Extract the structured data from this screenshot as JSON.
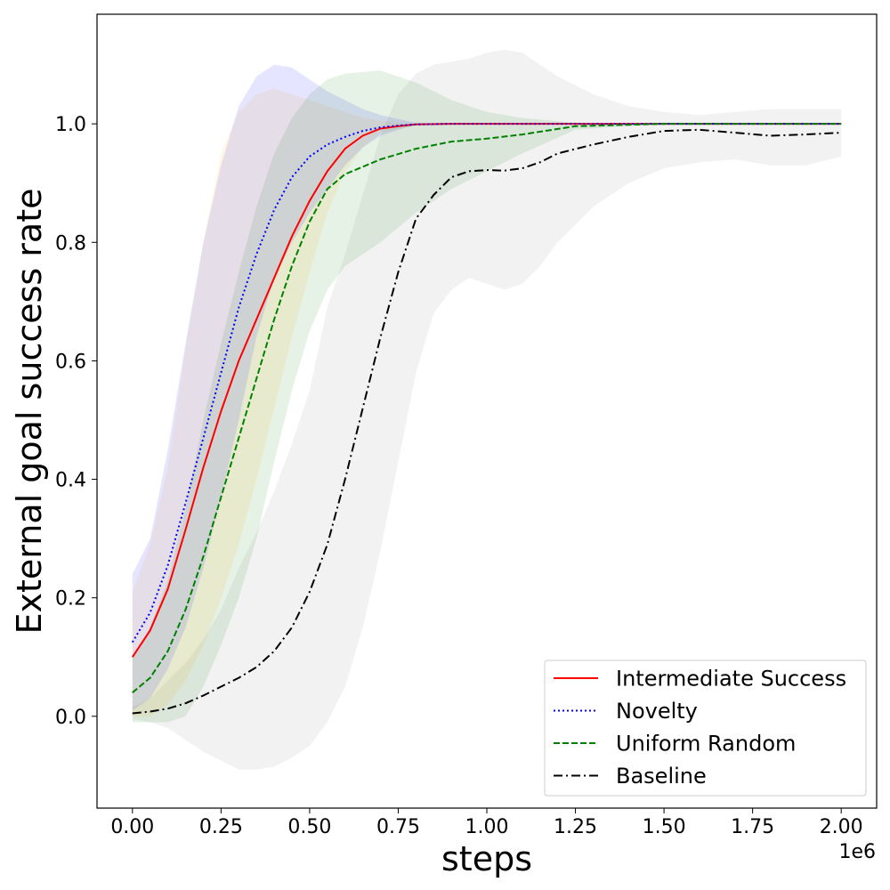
{
  "chart_data": {
    "type": "line",
    "xlabel": "steps",
    "ylabel": "External goal success rate",
    "x_offset_label": "1e6",
    "xlim": [
      -0.1,
      2.1
    ],
    "ylim": [
      -0.155,
      1.185
    ],
    "xticks": [
      0.0,
      0.25,
      0.5,
      0.75,
      1.0,
      1.25,
      1.5,
      1.75,
      2.0
    ],
    "xtick_labels": [
      "0.00",
      "0.25",
      "0.50",
      "0.75",
      "1.00",
      "1.25",
      "1.50",
      "1.75",
      "2.00"
    ],
    "yticks": [
      0.0,
      0.2,
      0.4,
      0.6,
      0.8,
      1.0
    ],
    "ytick_labels": [
      "0.0",
      "0.2",
      "0.4",
      "0.6",
      "0.8",
      "1.0"
    ],
    "grid": false,
    "legend_position": "bottom-right",
    "series": [
      {
        "name": "Intermediate Success",
        "color": "#ff0000",
        "band_color": "#ffa500",
        "dash": "solid",
        "x": [
          0.0,
          0.05,
          0.1,
          0.15,
          0.2,
          0.25,
          0.3,
          0.35,
          0.4,
          0.45,
          0.5,
          0.55,
          0.6,
          0.65,
          0.7,
          0.75,
          0.8,
          0.9,
          1.0,
          1.25,
          1.5,
          1.75,
          2.0
        ],
        "y": [
          0.1,
          0.145,
          0.215,
          0.315,
          0.42,
          0.515,
          0.6,
          0.67,
          0.74,
          0.81,
          0.87,
          0.92,
          0.958,
          0.98,
          0.992,
          0.996,
          0.999,
          1.0,
          1.0,
          1.0,
          1.0,
          1.0,
          1.0
        ],
        "lower": [
          0.0,
          0.0,
          0.02,
          0.06,
          0.12,
          0.2,
          0.29,
          0.4,
          0.52,
          0.64,
          0.75,
          0.85,
          0.92,
          0.96,
          0.985,
          0.99,
          0.998,
          1.0,
          1.0,
          1.0,
          1.0,
          1.0,
          1.0
        ],
        "upper": [
          0.21,
          0.29,
          0.42,
          0.62,
          0.8,
          0.95,
          1.02,
          1.05,
          1.06,
          1.05,
          1.04,
          1.03,
          1.02,
          1.01,
          1.005,
          1.002,
          1.0,
          1.0,
          1.0,
          1.0,
          1.0,
          1.0,
          1.0
        ]
      },
      {
        "name": "Novelty",
        "color": "#0000ff",
        "band_color": "#0000ff",
        "dash": "dotted",
        "x": [
          0.0,
          0.05,
          0.1,
          0.15,
          0.2,
          0.25,
          0.3,
          0.35,
          0.4,
          0.45,
          0.5,
          0.55,
          0.6,
          0.65,
          0.7,
          0.75,
          0.8,
          0.9,
          1.0,
          1.25,
          1.5,
          1.75,
          2.0
        ],
        "y": [
          0.125,
          0.175,
          0.255,
          0.36,
          0.47,
          0.58,
          0.69,
          0.78,
          0.855,
          0.91,
          0.945,
          0.965,
          0.978,
          0.988,
          0.994,
          0.997,
          0.999,
          1.0,
          1.0,
          1.0,
          1.0,
          1.0,
          1.0
        ],
        "lower": [
          0.01,
          0.03,
          0.08,
          0.15,
          0.25,
          0.37,
          0.5,
          0.64,
          0.74,
          0.8,
          0.85,
          0.89,
          0.93,
          0.96,
          0.98,
          0.99,
          0.998,
          1.0,
          1.0,
          1.0,
          1.0,
          1.0,
          1.0
        ],
        "upper": [
          0.24,
          0.3,
          0.45,
          0.63,
          0.8,
          0.93,
          1.03,
          1.08,
          1.1,
          1.095,
          1.075,
          1.055,
          1.04,
          1.025,
          1.015,
          1.008,
          1.002,
          1.0,
          1.0,
          1.0,
          1.0,
          1.0,
          1.0
        ]
      },
      {
        "name": "Uniform Random",
        "color": "#008000",
        "band_color": "#008000",
        "dash": "dashed",
        "x": [
          0.0,
          0.05,
          0.1,
          0.15,
          0.2,
          0.25,
          0.3,
          0.35,
          0.4,
          0.45,
          0.5,
          0.55,
          0.6,
          0.7,
          0.8,
          0.9,
          1.0,
          1.1,
          1.25,
          1.5,
          1.75,
          2.0
        ],
        "y": [
          0.04,
          0.065,
          0.11,
          0.18,
          0.27,
          0.37,
          0.47,
          0.57,
          0.67,
          0.76,
          0.835,
          0.89,
          0.915,
          0.94,
          0.958,
          0.97,
          0.975,
          0.982,
          0.996,
          1.0,
          1.0,
          1.0
        ],
        "lower": [
          -0.01,
          -0.01,
          -0.01,
          0.0,
          0.05,
          0.12,
          0.2,
          0.3,
          0.43,
          0.55,
          0.65,
          0.72,
          0.76,
          0.8,
          0.85,
          0.89,
          0.92,
          0.95,
          0.99,
          1.0,
          1.0,
          1.0
        ],
        "upper": [
          0.1,
          0.15,
          0.23,
          0.35,
          0.5,
          0.63,
          0.75,
          0.86,
          0.95,
          1.01,
          1.05,
          1.075,
          1.085,
          1.09,
          1.07,
          1.04,
          1.02,
          1.01,
          1.002,
          1.0,
          1.0,
          1.0
        ]
      },
      {
        "name": "Baseline",
        "color": "#000000",
        "band_color": "#808080",
        "dash": "dashdot",
        "x": [
          0.0,
          0.05,
          0.1,
          0.15,
          0.2,
          0.25,
          0.3,
          0.35,
          0.4,
          0.45,
          0.5,
          0.55,
          0.6,
          0.65,
          0.7,
          0.75,
          0.8,
          0.85,
          0.9,
          0.95,
          1.0,
          1.05,
          1.1,
          1.15,
          1.2,
          1.3,
          1.4,
          1.5,
          1.6,
          1.7,
          1.8,
          1.9,
          2.0
        ],
        "y": [
          0.005,
          0.008,
          0.013,
          0.022,
          0.035,
          0.05,
          0.065,
          0.083,
          0.11,
          0.15,
          0.21,
          0.29,
          0.4,
          0.52,
          0.64,
          0.75,
          0.84,
          0.88,
          0.91,
          0.92,
          0.922,
          0.921,
          0.925,
          0.935,
          0.95,
          0.965,
          0.978,
          0.988,
          0.99,
          0.985,
          0.98,
          0.982,
          0.985
        ],
        "lower": [
          -0.005,
          -0.01,
          -0.02,
          -0.04,
          -0.06,
          -0.075,
          -0.09,
          -0.09,
          -0.085,
          -0.07,
          -0.05,
          -0.01,
          0.05,
          0.15,
          0.28,
          0.43,
          0.58,
          0.68,
          0.72,
          0.74,
          0.73,
          0.72,
          0.73,
          0.76,
          0.8,
          0.86,
          0.9,
          0.925,
          0.935,
          0.94,
          0.93,
          0.93,
          0.945
        ],
        "upper": [
          0.015,
          0.03,
          0.06,
          0.09,
          0.13,
          0.18,
          0.25,
          0.31,
          0.38,
          0.46,
          0.55,
          0.69,
          0.78,
          0.88,
          0.98,
          1.05,
          1.085,
          1.1,
          1.105,
          1.11,
          1.12,
          1.125,
          1.12,
          1.1,
          1.08,
          1.05,
          1.03,
          1.02,
          1.015,
          1.02,
          1.025,
          1.025,
          1.025
        ]
      }
    ]
  }
}
